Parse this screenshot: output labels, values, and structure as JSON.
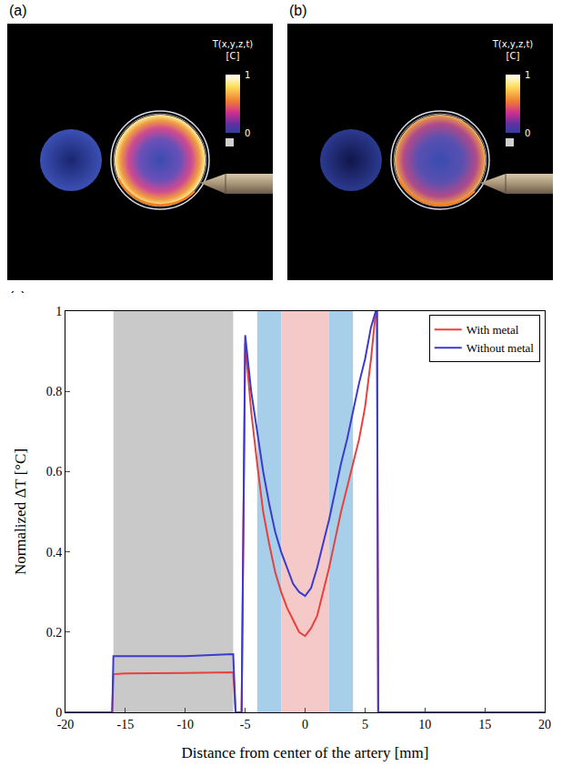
{
  "panels": [
    {
      "label": "(a)",
      "colorbar": {
        "title": [
          "T(x,y,z,t)",
          "[C]"
        ],
        "range": [
          0,
          1
        ],
        "ticks": [
          0,
          1
        ]
      }
    },
    {
      "label": "(b)",
      "colorbar": {
        "title": [
          "T(x,y,z,t)",
          "[C]"
        ],
        "range": [
          0,
          1
        ],
        "ticks": [
          0,
          1
        ]
      }
    }
  ],
  "chart_data": {
    "type": "line",
    "label": "(c)",
    "xlabel": "Distance from center of the artery [mm]",
    "ylabel": "Normalized ΔT [°C]",
    "x": [
      -20,
      -16.1,
      -16,
      -15,
      -10,
      -6,
      -5.8,
      -5.3,
      -5,
      -4.5,
      -4,
      -3.5,
      -3,
      -2.5,
      -2,
      -1.5,
      -1,
      -0.5,
      0,
      0.5,
      1,
      1.5,
      2,
      2.5,
      3,
      3.5,
      4,
      4.5,
      5,
      5.5,
      5.9,
      6,
      6.1,
      20
    ],
    "series": [
      {
        "name": "With metal",
        "color": "#e8403c",
        "values": [
          0,
          0,
          0.095,
          0.097,
          0.098,
          0.1,
          0,
          0,
          0.92,
          0.75,
          0.62,
          0.5,
          0.42,
          0.35,
          0.3,
          0.26,
          0.23,
          0.2,
          0.19,
          0.21,
          0.24,
          0.3,
          0.36,
          0.43,
          0.5,
          0.56,
          0.62,
          0.68,
          0.76,
          0.88,
          1,
          1,
          0,
          0
        ]
      },
      {
        "name": "Without metal",
        "color": "#3a3acf",
        "values": [
          0,
          0,
          0.14,
          0.14,
          0.14,
          0.145,
          0,
          0,
          0.94,
          0.8,
          0.7,
          0.6,
          0.52,
          0.45,
          0.4,
          0.36,
          0.32,
          0.3,
          0.29,
          0.31,
          0.36,
          0.42,
          0.48,
          0.55,
          0.62,
          0.68,
          0.75,
          0.82,
          0.88,
          0.96,
          1,
          1,
          0,
          0
        ]
      }
    ],
    "regions": [
      {
        "x0": -16,
        "x1": -6,
        "color": "#c9c9c9"
      },
      {
        "x0": -4,
        "x1": -2,
        "color": "#a8cfe9"
      },
      {
        "x0": -2,
        "x1": 2,
        "color": "#f6c9c9"
      },
      {
        "x0": 2,
        "x1": 4,
        "color": "#a8cfe9"
      }
    ],
    "xlim": [
      -20,
      20
    ],
    "xticks": [
      -20,
      -15,
      -10,
      -5,
      0,
      5,
      10,
      15,
      20
    ],
    "ylim": [
      0,
      1
    ],
    "yticks": [
      0,
      0.2,
      0.4,
      0.6,
      0.8,
      1
    ],
    "grid": false,
    "legend": "upper right"
  }
}
